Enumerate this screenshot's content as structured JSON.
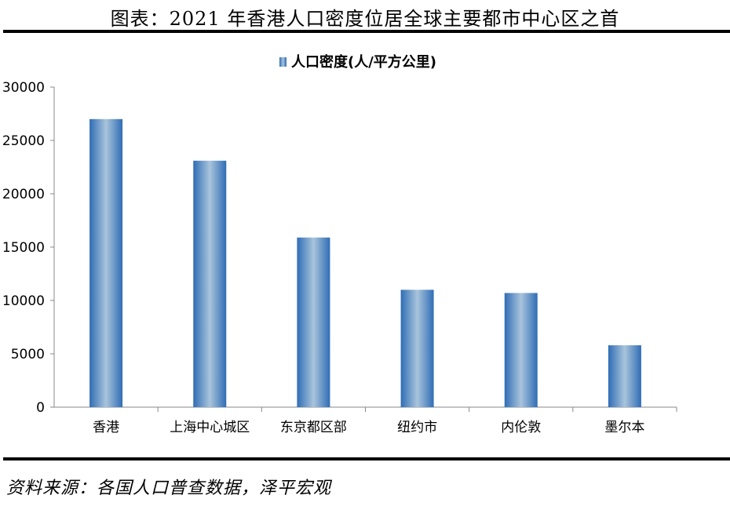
{
  "figure": {
    "title": "图表：2021 年香港人口密度位居全球主要都市中心区之首",
    "source": "资料来源：各国人口普查数据，泽平宏观"
  },
  "chart_data": {
    "type": "bar",
    "categories": [
      "香港",
      "上海中心城区",
      "东京都区部",
      "纽约市",
      "内伦敦",
      "墨尔本"
    ],
    "series": [
      {
        "name": "人口密度(人/平方公里)",
        "values": [
          27000,
          23100,
          15900,
          11000,
          10700,
          5800
        ]
      }
    ],
    "ylim": [
      0,
      30000
    ],
    "yticks": [
      0,
      5000,
      10000,
      15000,
      20000,
      25000,
      30000
    ],
    "legend_position": "top-center",
    "grid": false,
    "colors": {
      "bar_edge": "#2f6db5",
      "bar_center": "#a9c4dc",
      "axis": "#888888"
    }
  }
}
